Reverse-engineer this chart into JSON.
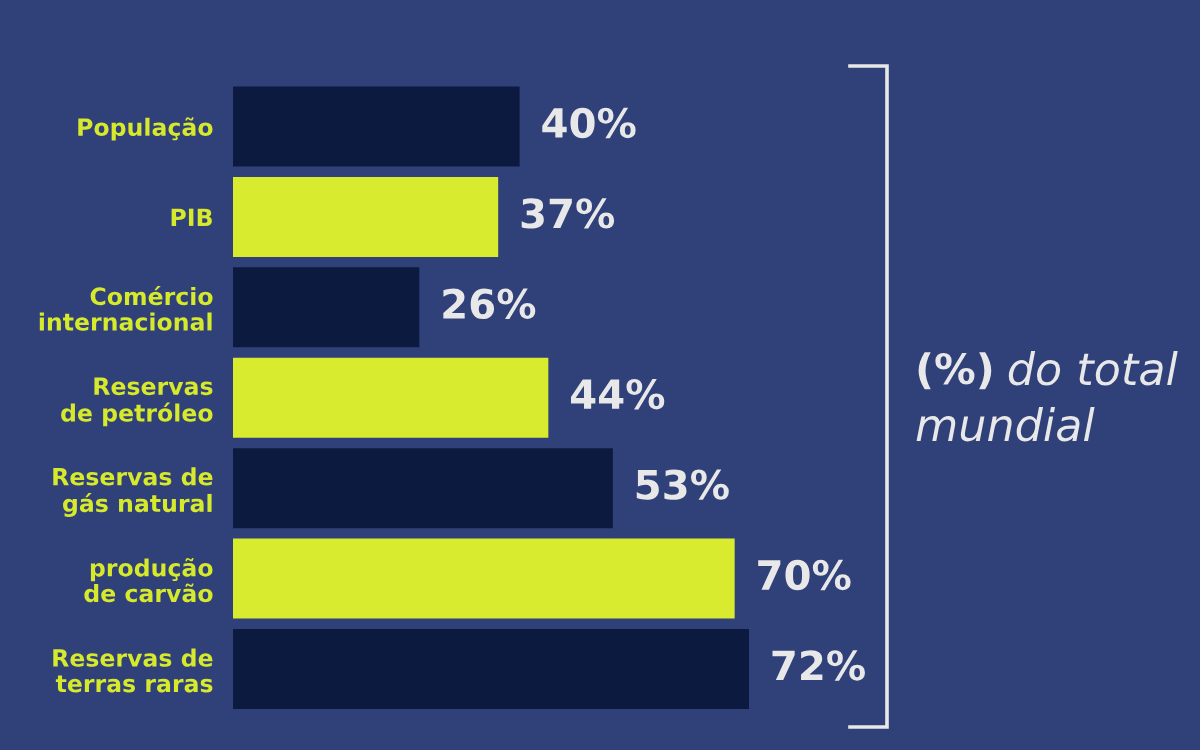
{
  "chart_data": {
    "type": "bar",
    "orientation": "horizontal",
    "categories": [
      "População",
      "PIB",
      "Comércio\ninternacional",
      "Reservas\nde petróleo",
      "Reservas de\ngás natural",
      "produção\nde carvão",
      "Reservas de\nterras raras"
    ],
    "values": [
      40,
      37,
      26,
      44,
      53,
      70,
      72
    ],
    "colors": [
      "#0d1a40",
      "#d8eb2e",
      "#0d1a40",
      "#d8eb2e",
      "#0d1a40",
      "#d8eb2e",
      "#0d1a40"
    ],
    "value_labels": [
      "40%",
      "37%",
      "26%",
      "44%",
      "53%",
      "70%",
      "72%"
    ],
    "tick_labels": "y",
    "annotations": [
      "(%) do total mundial"
    ]
  }
}
